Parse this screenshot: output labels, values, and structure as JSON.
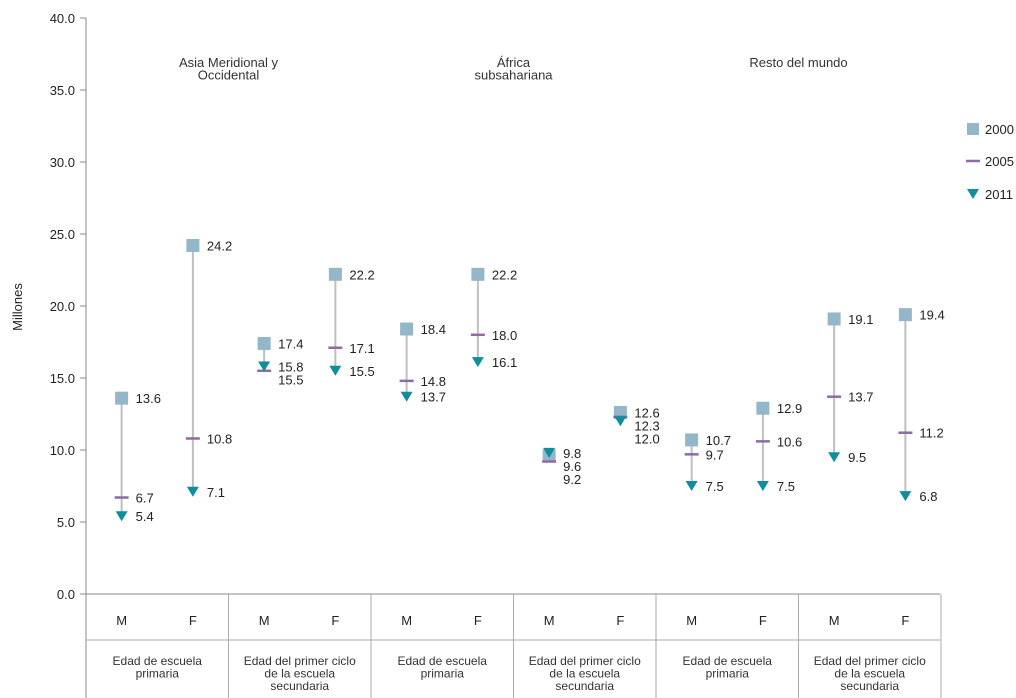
{
  "chart_data": {
    "type": "dumbbell",
    "ylabel": "Millones",
    "ylim": [
      0,
      40
    ],
    "yticks": [
      "0.0",
      "5.0",
      "10.0",
      "15.0",
      "20.0",
      "25.0",
      "30.0",
      "35.0",
      "40.0"
    ],
    "regions": [
      {
        "name": "Asia Meridional y Occidental",
        "lines": [
          "Asia Meridional y",
          "Occidental"
        ]
      },
      {
        "name": "África subsahariana",
        "lines": [
          "África",
          "subsahariana"
        ]
      },
      {
        "name": "Resto del mundo",
        "lines": [
          "Resto del mundo"
        ]
      }
    ],
    "groups": [
      {
        "lines": [
          "Edad de escuela",
          "primaria"
        ]
      },
      {
        "lines": [
          "Edad del primer ciclo",
          "de la escuela",
          "secundaria"
        ]
      },
      {
        "lines": [
          "Edad de escuela",
          "primaria"
        ]
      },
      {
        "lines": [
          "Edad del primer ciclo",
          "de la escuela",
          "secundaria"
        ]
      },
      {
        "lines": [
          "Edad de escuela",
          "primaria"
        ]
      },
      {
        "lines": [
          "Edad del primer ciclo",
          "de la escuela",
          "secundaria"
        ]
      }
    ],
    "categories": [
      {
        "sex": "M",
        "v2000": 13.6,
        "v2005": 6.7,
        "v2011": 5.4,
        "labels": [
          "13.6",
          "6.7",
          "5.4"
        ]
      },
      {
        "sex": "F",
        "v2000": 24.2,
        "v2005": 10.8,
        "v2011": 7.1,
        "labels": [
          "24.2",
          "10.8",
          "7.1"
        ]
      },
      {
        "sex": "M",
        "v2000": 17.4,
        "v2005": 15.5,
        "v2011": 15.8,
        "labels": [
          "17.4",
          "15.8",
          "15.5"
        ]
      },
      {
        "sex": "F",
        "v2000": 22.2,
        "v2005": 17.1,
        "v2011": 15.5,
        "labels": [
          "22.2",
          "17.1",
          "15.5"
        ]
      },
      {
        "sex": "M",
        "v2000": 18.4,
        "v2005": 14.8,
        "v2011": 13.7,
        "labels": [
          "18.4",
          "14.8",
          "13.7"
        ]
      },
      {
        "sex": "F",
        "v2000": 22.2,
        "v2005": 18.0,
        "v2011": 16.1,
        "labels": [
          "22.2",
          "18.0",
          "16.1"
        ]
      },
      {
        "sex": "M",
        "v2000": 9.6,
        "v2005": 9.2,
        "v2011": 9.8,
        "labels": [
          "9.8",
          "9.6",
          "9.2"
        ]
      },
      {
        "sex": "F",
        "v2000": 12.6,
        "v2005": 12.3,
        "v2011": 12.0,
        "labels": [
          "12.6",
          "12.3",
          "12.0"
        ]
      },
      {
        "sex": "M",
        "v2000": 10.7,
        "v2005": 9.7,
        "v2011": 7.5,
        "labels": [
          "10.7",
          "9.7",
          "7.5"
        ]
      },
      {
        "sex": "F",
        "v2000": 12.9,
        "v2005": 10.6,
        "v2011": 7.5,
        "labels": [
          "12.9",
          "10.6",
          "7.5"
        ]
      },
      {
        "sex": "M",
        "v2000": 19.1,
        "v2005": 13.7,
        "v2011": 9.5,
        "labels": [
          "19.1",
          "13.7",
          "9.5"
        ]
      },
      {
        "sex": "F",
        "v2000": 19.4,
        "v2005": 11.2,
        "v2011": 6.8,
        "labels": [
          "19.4",
          "11.2",
          "6.8"
        ]
      }
    ],
    "legend": [
      {
        "name": "2000",
        "marker": "square",
        "color": "#93b6c9"
      },
      {
        "name": "2005",
        "marker": "dash",
        "color": "#8e6aa6"
      },
      {
        "name": "2011",
        "marker": "triangle-down",
        "color": "#0f8e9e"
      }
    ],
    "legend_position": "right",
    "line_color": "#bfbfbf",
    "grid": false
  }
}
